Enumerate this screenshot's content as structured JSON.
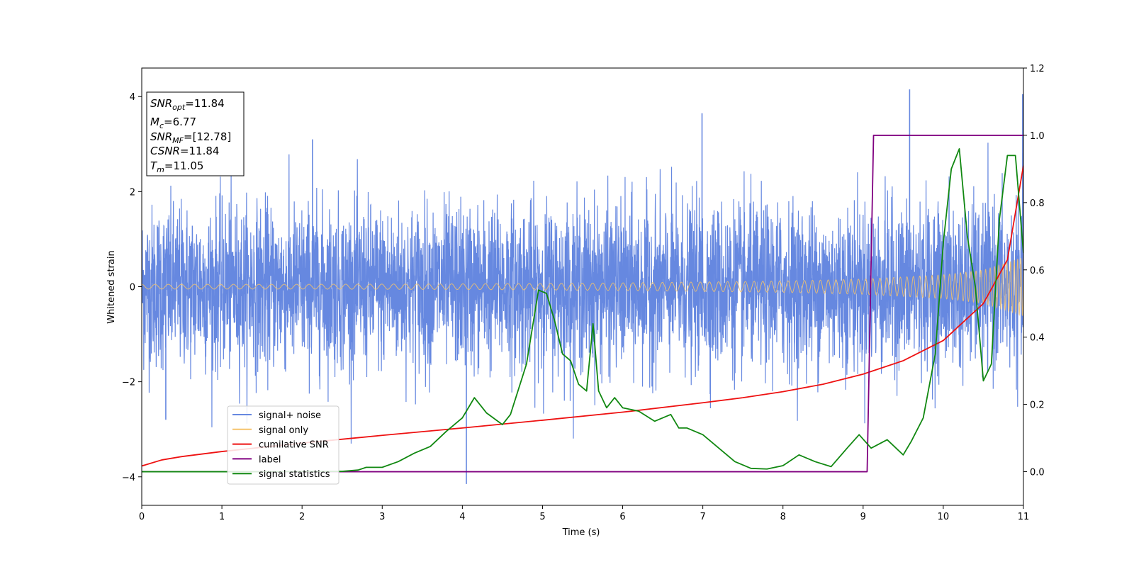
{
  "chart_data": {
    "type": "line",
    "title": "",
    "xlabel": "Time (s)",
    "ylabel": "Whitened strain",
    "xlim": [
      0,
      11
    ],
    "ylim_left": [
      -4.6,
      4.6
    ],
    "ylim_right": [
      -0.1,
      1.2
    ],
    "x_ticks": [
      0,
      1,
      2,
      3,
      4,
      5,
      6,
      7,
      8,
      9,
      10,
      11
    ],
    "y_ticks_left": [
      -4,
      -2,
      0,
      2,
      4
    ],
    "y_ticks_right": [
      0.0,
      0.2,
      0.4,
      0.6,
      0.8,
      1.0,
      1.2
    ],
    "y_tick_labels_left": [
      "−4",
      "−2",
      "0",
      "2",
      "4"
    ],
    "y_tick_labels_right": [
      "0.0",
      "0.2",
      "0.4",
      "0.6",
      "0.8",
      "1.0",
      "1.2"
    ],
    "grid": false,
    "legend_position": "lower-left",
    "series": [
      {
        "name": "signal+ noise",
        "axis": "left",
        "color": "#6688e0",
        "noise_sigma": 0.85,
        "extremes": [
          [
            4.05,
            -4.15
          ],
          [
            9.58,
            4.15
          ],
          [
            10.99,
            4.05
          ],
          [
            6.99,
            3.65
          ],
          [
            0.3,
            -2.8
          ],
          [
            2.13,
            3.1
          ]
        ]
      },
      {
        "name": "signal only",
        "axis": "left",
        "color": "#f5c36b",
        "amplitude": [
          [
            0,
            0.05
          ],
          [
            2,
            0.05
          ],
          [
            4,
            0.06
          ],
          [
            6,
            0.08
          ],
          [
            8,
            0.12
          ],
          [
            9,
            0.16
          ],
          [
            10,
            0.25
          ],
          [
            10.5,
            0.35
          ],
          [
            11,
            0.62
          ]
        ]
      },
      {
        "name": "cumilative SNR",
        "axis": "right",
        "color": "#ee1111",
        "x": [
          0,
          0.25,
          0.5,
          1,
          2,
          3,
          4,
          5,
          6,
          7,
          7.5,
          8,
          8.5,
          9,
          9.5,
          10,
          10.5,
          10.8,
          11
        ],
        "y": [
          0.017,
          0.035,
          0.045,
          0.06,
          0.085,
          0.108,
          0.13,
          0.153,
          0.177,
          0.205,
          0.22,
          0.238,
          0.26,
          0.29,
          0.33,
          0.39,
          0.5,
          0.63,
          0.91
        ]
      },
      {
        "name": "label",
        "axis": "right",
        "color": "#800080",
        "x": [
          0,
          9.05,
          9.13,
          11
        ],
        "y": [
          0.0,
          0.0,
          1.0,
          1.0
        ]
      },
      {
        "name": "signal statistics",
        "axis": "right",
        "color": "#118811",
        "x": [
          0,
          0.5,
          1,
          1.5,
          2,
          2.5,
          2.7,
          2.8,
          3.0,
          3.2,
          3.4,
          3.6,
          3.8,
          4.0,
          4.1,
          4.15,
          4.3,
          4.5,
          4.6,
          4.8,
          4.95,
          5.05,
          5.15,
          5.25,
          5.35,
          5.45,
          5.55,
          5.63,
          5.7,
          5.8,
          5.9,
          6.0,
          6.2,
          6.4,
          6.6,
          6.7,
          6.8,
          7.0,
          7.2,
          7.4,
          7.6,
          7.8,
          8.0,
          8.2,
          8.4,
          8.6,
          8.8,
          8.95,
          9.1,
          9.3,
          9.5,
          9.6,
          9.75,
          9.9,
          10.0,
          10.1,
          10.2,
          10.3,
          10.4,
          10.5,
          10.6,
          10.7,
          10.8,
          10.9,
          11.0
        ],
        "y": [
          0.0,
          0.0,
          0.0,
          0.0,
          0.001,
          0.001,
          0.005,
          0.013,
          0.013,
          0.03,
          0.055,
          0.075,
          0.12,
          0.16,
          0.2,
          0.22,
          0.175,
          0.14,
          0.17,
          0.32,
          0.54,
          0.53,
          0.45,
          0.35,
          0.33,
          0.26,
          0.24,
          0.44,
          0.24,
          0.19,
          0.22,
          0.19,
          0.18,
          0.15,
          0.17,
          0.13,
          0.13,
          0.11,
          0.07,
          0.03,
          0.01,
          0.008,
          0.018,
          0.05,
          0.03,
          0.015,
          0.07,
          0.11,
          0.07,
          0.095,
          0.05,
          0.09,
          0.16,
          0.35,
          0.68,
          0.9,
          0.96,
          0.7,
          0.55,
          0.27,
          0.32,
          0.75,
          0.94,
          0.94,
          0.65
        ]
      }
    ],
    "annotations": [
      {
        "sym": "SNR",
        "sub": "opt",
        "value": "=11.84"
      },
      {
        "sym": "M",
        "sub": "c",
        "value": "=6.77"
      },
      {
        "sym": "SNR",
        "sub": "MF",
        "value": "=[12.78]"
      },
      {
        "sym": "CSNR",
        "sub": "",
        "value": "=11.84"
      },
      {
        "sym": "T",
        "sub": "m",
        "value": "=11.05"
      }
    ]
  }
}
